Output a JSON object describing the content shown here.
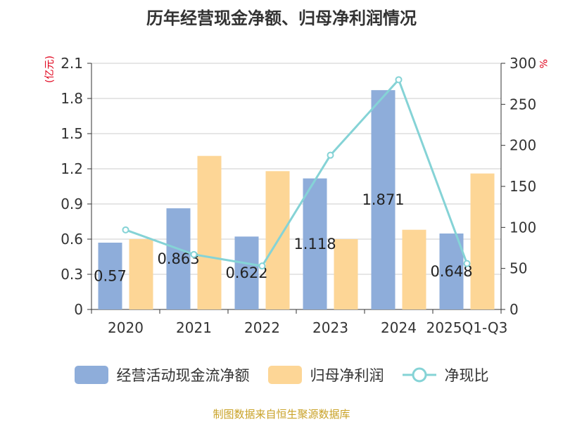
{
  "chart_data": {
    "type": "bar",
    "title": "历年经营现金净额、归母净利润情况",
    "ylabel_left": "(亿元)",
    "ylabel_right": "%",
    "categories": [
      "2020",
      "2021",
      "2022",
      "2023",
      "2024",
      "2025Q1-Q3"
    ],
    "left_ticks": [
      "0",
      "0.3",
      "0.6",
      "0.9",
      "1.2",
      "1.5",
      "1.8",
      "2.1"
    ],
    "right_ticks": [
      "0",
      "50",
      "100",
      "150",
      "200",
      "250",
      "300"
    ],
    "ylim_left": [
      0,
      2.1
    ],
    "ylim_right": [
      0,
      300
    ],
    "series": [
      {
        "name": "经营活动现金流净额",
        "axis": "left",
        "kind": "bar",
        "color": "#8eadda",
        "values": [
          0.57,
          0.863,
          0.622,
          1.118,
          1.871,
          0.648
        ],
        "labels": [
          "0.57",
          "0.863",
          "0.622",
          "1.118",
          "1.871",
          "0.648"
        ]
      },
      {
        "name": "归母净利润",
        "axis": "left",
        "kind": "bar",
        "color": "#fdd696",
        "values": [
          0.6,
          1.31,
          1.18,
          0.6,
          0.68,
          1.16
        ]
      },
      {
        "name": "净现比",
        "axis": "right",
        "kind": "line",
        "color": "#85d3d6",
        "values": [
          97,
          67,
          53,
          188,
          280,
          56
        ]
      }
    ]
  },
  "source": "制图数据来自恒生聚源数据库"
}
